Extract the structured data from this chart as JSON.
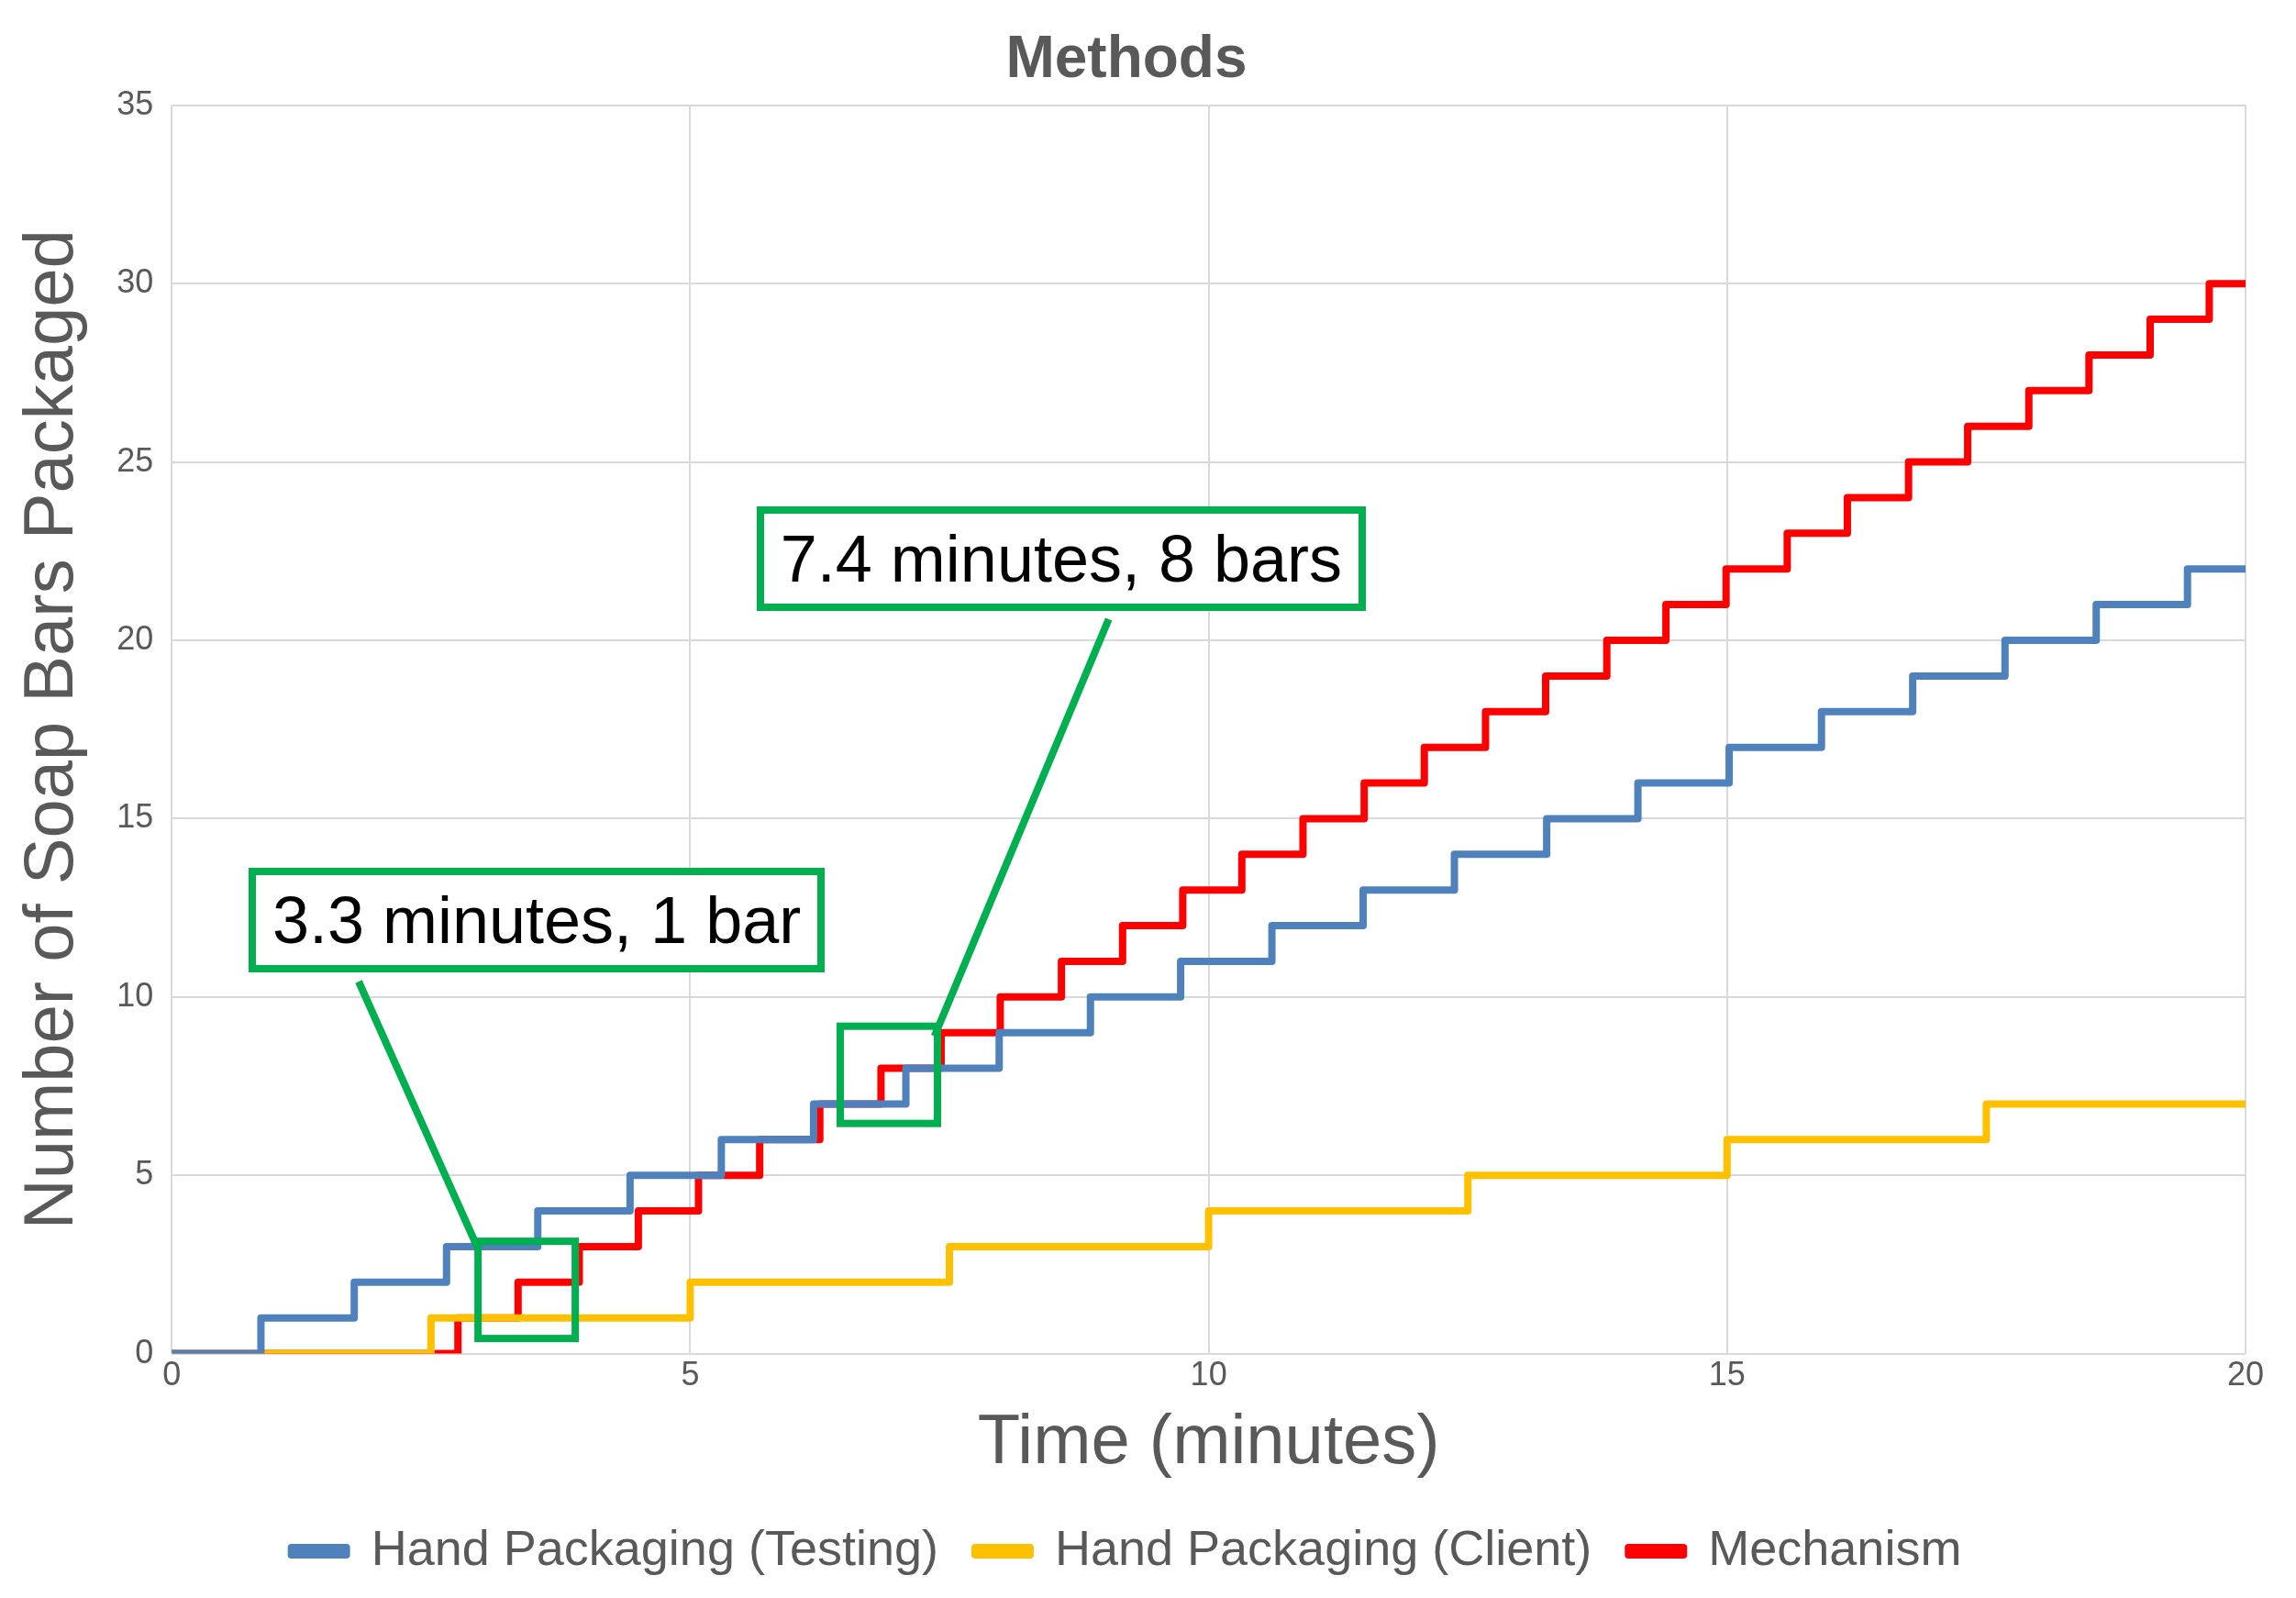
{
  "chart_data": {
    "type": "step",
    "title": "Methods",
    "xlabel": "Time (minutes)",
    "ylabel": "Number of Soap Bars Packaged",
    "xlim": [
      0,
      20
    ],
    "xticks": [
      0,
      5,
      10,
      15,
      20
    ],
    "ylim": [
      0,
      35
    ],
    "yticks": [
      0,
      5,
      10,
      15,
      20,
      25,
      30,
      35
    ],
    "grid": true,
    "legend": "bottom",
    "series": [
      {
        "name": "Hand Packaging (Testing)",
        "color": "#4f81bd",
        "x": [
          0,
          0.86,
          1.76,
          2.65,
          3.53,
          4.42,
          5.3,
          6.19,
          7.08,
          7.98,
          8.86,
          9.73,
          10.61,
          11.49,
          12.37,
          13.26,
          14.14,
          15.02,
          15.91,
          16.79,
          17.68,
          18.56,
          19.44,
          20
        ],
        "values": [
          0,
          1,
          2,
          3,
          4,
          5,
          6,
          7,
          8,
          9,
          10,
          11,
          12,
          13,
          14,
          15,
          16,
          17,
          18,
          19,
          20,
          21,
          22,
          22
        ]
      },
      {
        "name": "Hand Packaging (Client)",
        "color": "#ffc000",
        "x": [
          0,
          2.5,
          5,
          7.5,
          10,
          12.5,
          15,
          17.5,
          20
        ],
        "values": [
          0,
          1,
          2,
          3,
          4,
          5,
          6,
          7,
          7
        ]
      },
      {
        "name": "Mechanism",
        "color": "#ff0000",
        "x": [
          0,
          2.76,
          3.34,
          3.93,
          4.5,
          5.08,
          5.67,
          6.25,
          6.84,
          7.42,
          7.99,
          8.58,
          9.17,
          9.75,
          10.32,
          10.91,
          11.5,
          12.08,
          12.67,
          13.25,
          13.84,
          14.41,
          14.99,
          15.58,
          16.16,
          16.75,
          17.32,
          17.91,
          18.49,
          19.08,
          19.65,
          20
        ],
        "values": [
          0,
          1,
          2,
          3,
          4,
          5,
          6,
          7,
          8,
          9,
          10,
          11,
          12,
          13,
          14,
          15,
          16,
          17,
          18,
          19,
          20,
          21,
          22,
          23,
          24,
          25,
          26,
          27,
          28,
          29,
          30,
          30
        ]
      }
    ],
    "annotations": [
      "3.3 minutes, 1 bar",
      "7.4 minutes, 8 bars"
    ]
  }
}
